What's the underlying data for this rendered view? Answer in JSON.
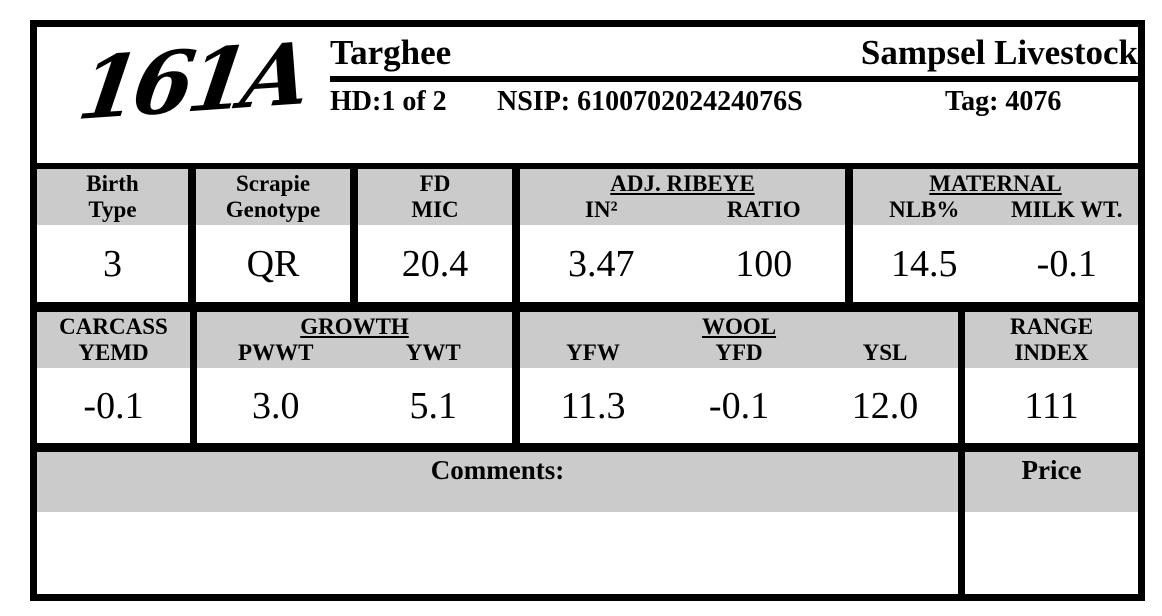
{
  "colors": {
    "ink": "#000000",
    "panel_gray": "#cbcbcb",
    "paper": "#ffffff"
  },
  "logo": {
    "id": "161A"
  },
  "header": {
    "breed": "Targhee",
    "ranch": "Sampsel Livestock",
    "hd": "HD:1 of 2",
    "nsip": "NSIP: 610070202424076S",
    "tag": "Tag: 4076"
  },
  "epd_row1": {
    "birth_type": {
      "line1": "Birth",
      "line2": "Type",
      "value": "3"
    },
    "scrapie_genotype": {
      "line1": "Scrapie",
      "line2": "Genotype",
      "value": "QR"
    },
    "fd_mic": {
      "line1": "FD",
      "line2": "MIC",
      "value": "20.4"
    },
    "adj_ribeye": {
      "group": "ADJ. RIBEYE",
      "sub": [
        {
          "label": "IN²",
          "value": "3.47"
        },
        {
          "label": "RATIO",
          "value": "100"
        }
      ]
    },
    "maternal": {
      "group": "MATERNAL",
      "sub": [
        {
          "label": "NLB%",
          "value": "14.5"
        },
        {
          "label": "MILK WT.",
          "value": "-0.1"
        }
      ]
    }
  },
  "epd_row2": {
    "carcass": {
      "line1": "CARCASS",
      "line2": "YEMD",
      "value": "-0.1"
    },
    "growth": {
      "group": "GROWTH",
      "sub": [
        {
          "label": "PWWT",
          "value": "3.0"
        },
        {
          "label": "YWT",
          "value": "5.1"
        }
      ]
    },
    "wool": {
      "group": "WOOL",
      "sub": [
        {
          "label": "YFW",
          "value": "11.3"
        },
        {
          "label": "YFD",
          "value": "-0.1"
        },
        {
          "label": "YSL",
          "value": "12.0"
        }
      ]
    },
    "range_index": {
      "line1": "RANGE",
      "line2": "INDEX",
      "value": "111"
    }
  },
  "footer": {
    "comments_label": "Comments:",
    "comments_value": "",
    "price_label": "Price",
    "price_value": ""
  }
}
